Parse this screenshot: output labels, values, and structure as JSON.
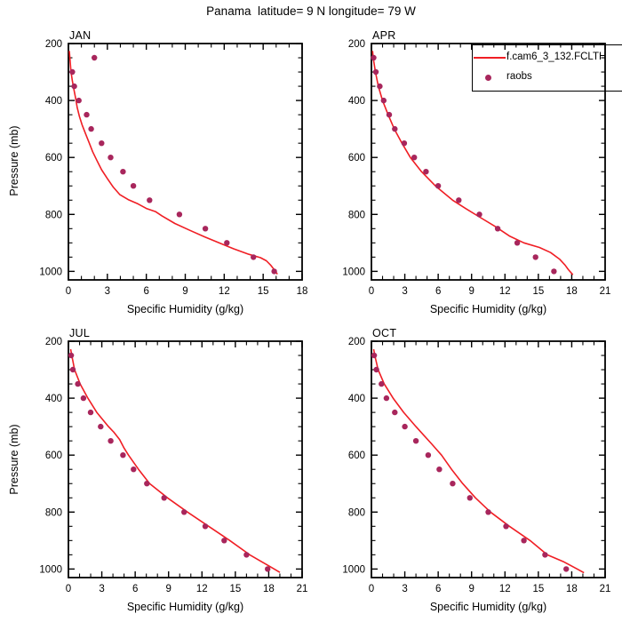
{
  "title": "Panama  latitude= 9 N longitude= 79 W",
  "legend": {
    "line_label": "f.cam6_3_132.FCLTH",
    "dot_label": "raobs",
    "line_color": "#f01e24",
    "dot_color": "#a8265c"
  },
  "chart_data": [
    {
      "type": "line",
      "title": "JAN",
      "xlabel": "Specific Humidity (g/kg)",
      "ylabel": "Pressure (mb)",
      "xlim": [
        0,
        18
      ],
      "pressure_lim": [
        200,
        1030
      ],
      "xticks": [
        0,
        3,
        6,
        9,
        12,
        15,
        18
      ],
      "x_minor_step": 1,
      "yticks": [
        200,
        400,
        600,
        800,
        1000
      ],
      "y_minor_step": 50,
      "series": [
        {
          "name": "f.cam6_3_132.FCLTH",
          "type": "line",
          "color": "#f01e24",
          "points_pressure_q": [
            [
              226,
              0.07
            ],
            [
              260,
              0.13
            ],
            [
              300,
              0.2
            ],
            [
              330,
              0.3
            ],
            [
              360,
              0.42
            ],
            [
              395,
              0.57
            ],
            [
              425,
              0.68
            ],
            [
              455,
              0.84
            ],
            [
              485,
              1.05
            ],
            [
              517,
              1.32
            ],
            [
              549,
              1.6
            ],
            [
              580,
              1.87
            ],
            [
              611,
              2.2
            ],
            [
              643,
              2.55
            ],
            [
              674,
              3.0
            ],
            [
              704,
              3.45
            ],
            [
              730,
              3.95
            ],
            [
              748,
              4.6
            ],
            [
              763,
              5.35
            ],
            [
              779,
              6.0
            ],
            [
              790,
              6.7
            ],
            [
              805,
              7.2
            ],
            [
              832,
              8.2
            ],
            [
              856,
              9.35
            ],
            [
              879,
              10.5
            ],
            [
              900,
              11.6
            ],
            [
              921,
              12.75
            ],
            [
              940,
              13.9
            ],
            [
              952,
              14.8
            ],
            [
              963,
              15.25
            ],
            [
              979,
              15.6
            ],
            [
              994,
              15.85
            ],
            [
              1010,
              16.1
            ]
          ]
        },
        {
          "name": "raobs",
          "type": "scatter",
          "color": "#a8265c",
          "points_pressure_q": [
            [
              250,
              2.0
            ],
            [
              300,
              0.3
            ],
            [
              350,
              0.45
            ],
            [
              400,
              0.8
            ],
            [
              450,
              1.4
            ],
            [
              500,
              1.75
            ],
            [
              550,
              2.55
            ],
            [
              600,
              3.25
            ],
            [
              650,
              4.2
            ],
            [
              700,
              5.0
            ],
            [
              750,
              6.25
            ],
            [
              800,
              8.55
            ],
            [
              850,
              10.55
            ],
            [
              900,
              12.2
            ],
            [
              950,
              14.25
            ],
            [
              1000,
              15.85
            ]
          ]
        }
      ]
    },
    {
      "type": "line",
      "title": "APR",
      "xlabel": "Specific Humidity (g/kg)",
      "ylabel": "Pressure (mb)",
      "xlim": [
        0,
        21
      ],
      "pressure_lim": [
        200,
        1030
      ],
      "xticks": [
        0,
        3,
        6,
        9,
        12,
        15,
        18,
        21
      ],
      "x_minor_step": 1,
      "yticks": [
        200,
        400,
        600,
        800,
        1000
      ],
      "y_minor_step": 50,
      "series": [
        {
          "name": "f.cam6_3_132.FCLTH",
          "type": "line",
          "color": "#f01e24",
          "points_pressure_q": [
            [
              226,
              0.1
            ],
            [
              250,
              0.16
            ],
            [
              300,
              0.36
            ],
            [
              350,
              0.62
            ],
            [
              400,
              1.0
            ],
            [
              450,
              1.5
            ],
            [
              500,
              2.05
            ],
            [
              550,
              2.75
            ],
            [
              600,
              3.5
            ],
            [
              650,
              4.5
            ],
            [
              700,
              5.75
            ],
            [
              750,
              7.3
            ],
            [
              780,
              8.5
            ],
            [
              810,
              9.75
            ],
            [
              842,
              11.1
            ],
            [
              876,
              12.4
            ],
            [
              900,
              13.7
            ],
            [
              916,
              15.1
            ],
            [
              934,
              16.1
            ],
            [
              957,
              16.9
            ],
            [
              978,
              17.4
            ],
            [
              994,
              17.7
            ],
            [
              1012,
              18.1
            ]
          ]
        },
        {
          "name": "raobs",
          "type": "scatter",
          "color": "#a8265c",
          "points_pressure_q": [
            [
              250,
              0.2
            ],
            [
              300,
              0.4
            ],
            [
              350,
              0.75
            ],
            [
              400,
              1.1
            ],
            [
              450,
              1.6
            ],
            [
              500,
              2.1
            ],
            [
              550,
              2.95
            ],
            [
              600,
              3.85
            ],
            [
              650,
              4.9
            ],
            [
              700,
              6.0
            ],
            [
              750,
              7.85
            ],
            [
              800,
              9.7
            ],
            [
              850,
              11.35
            ],
            [
              900,
              13.1
            ],
            [
              950,
              14.75
            ],
            [
              1000,
              16.4
            ]
          ]
        }
      ]
    },
    {
      "type": "line",
      "title": "JUL",
      "xlabel": "Specific Humidity (g/kg)",
      "ylabel": "Pressure (mb)",
      "xlim": [
        0,
        21
      ],
      "pressure_lim": [
        200,
        1030
      ],
      "xticks": [
        0,
        3,
        6,
        9,
        12,
        15,
        18,
        21
      ],
      "x_minor_step": 1,
      "yticks": [
        200,
        400,
        600,
        800,
        1000
      ],
      "y_minor_step": 50,
      "series": [
        {
          "name": "f.cam6_3_132.FCLTH",
          "type": "line",
          "color": "#f01e24",
          "points_pressure_q": [
            [
              228,
              0.2
            ],
            [
              250,
              0.3
            ],
            [
              300,
              0.55
            ],
            [
              350,
              1.05
            ],
            [
              400,
              1.75
            ],
            [
              450,
              2.55
            ],
            [
              500,
              3.6
            ],
            [
              520,
              4.1
            ],
            [
              545,
              4.6
            ],
            [
              575,
              5.0
            ],
            [
              600,
              5.4
            ],
            [
              650,
              6.3
            ],
            [
              700,
              7.3
            ],
            [
              750,
              8.9
            ],
            [
              800,
              10.7
            ],
            [
              850,
              12.6
            ],
            [
              900,
              14.5
            ],
            [
              950,
              16.3
            ],
            [
              975,
              17.4
            ],
            [
              1000,
              18.5
            ],
            [
              1012,
              19.0
            ]
          ]
        },
        {
          "name": "raobs",
          "type": "scatter",
          "color": "#a8265c",
          "points_pressure_q": [
            [
              250,
              0.25
            ],
            [
              300,
              0.4
            ],
            [
              350,
              0.85
            ],
            [
              400,
              1.35
            ],
            [
              450,
              2.0
            ],
            [
              500,
              2.9
            ],
            [
              550,
              3.8
            ],
            [
              600,
              4.9
            ],
            [
              650,
              5.85
            ],
            [
              700,
              7.05
            ],
            [
              750,
              8.6
            ],
            [
              800,
              10.4
            ],
            [
              850,
              12.3
            ],
            [
              900,
              14.0
            ],
            [
              950,
              16.0
            ],
            [
              1000,
              17.9
            ]
          ]
        }
      ]
    },
    {
      "type": "line",
      "title": "OCT",
      "xlabel": "Specific Humidity (g/kg)",
      "ylabel": "Pressure (mb)",
      "xlim": [
        0,
        21
      ],
      "xticks": [
        0,
        3,
        6,
        9,
        12,
        15,
        18,
        21
      ],
      "pressure_lim": [
        200,
        1030
      ],
      "x_minor_step": 1,
      "yticks": [
        200,
        400,
        600,
        800,
        1000
      ],
      "y_minor_step": 50,
      "series": [
        {
          "name": "f.cam6_3_132.FCLTH",
          "type": "line",
          "color": "#f01e24",
          "points_pressure_q": [
            [
              228,
              0.2
            ],
            [
              250,
              0.3
            ],
            [
              300,
              0.6
            ],
            [
              350,
              1.15
            ],
            [
              400,
              1.95
            ],
            [
              450,
              2.9
            ],
            [
              500,
              4.0
            ],
            [
              530,
              4.7
            ],
            [
              560,
              5.4
            ],
            [
              600,
              6.3
            ],
            [
              650,
              7.2
            ],
            [
              700,
              8.2
            ],
            [
              750,
              9.35
            ],
            [
              800,
              10.7
            ],
            [
              850,
              12.4
            ],
            [
              900,
              14.25
            ],
            [
              950,
              15.8
            ],
            [
              975,
              17.3
            ],
            [
              1000,
              18.5
            ],
            [
              1013,
              19.1
            ]
          ]
        },
        {
          "name": "raobs",
          "type": "scatter",
          "color": "#a8265c",
          "points_pressure_q": [
            [
              250,
              0.25
            ],
            [
              300,
              0.45
            ],
            [
              350,
              0.9
            ],
            [
              400,
              1.35
            ],
            [
              450,
              2.1
            ],
            [
              500,
              3.0
            ],
            [
              550,
              4.0
            ],
            [
              600,
              5.1
            ],
            [
              650,
              6.1
            ],
            [
              700,
              7.3
            ],
            [
              750,
              8.85
            ],
            [
              800,
              10.5
            ],
            [
              850,
              12.1
            ],
            [
              900,
              13.7
            ],
            [
              950,
              15.6
            ],
            [
              1000,
              17.5
            ]
          ]
        }
      ]
    }
  ]
}
